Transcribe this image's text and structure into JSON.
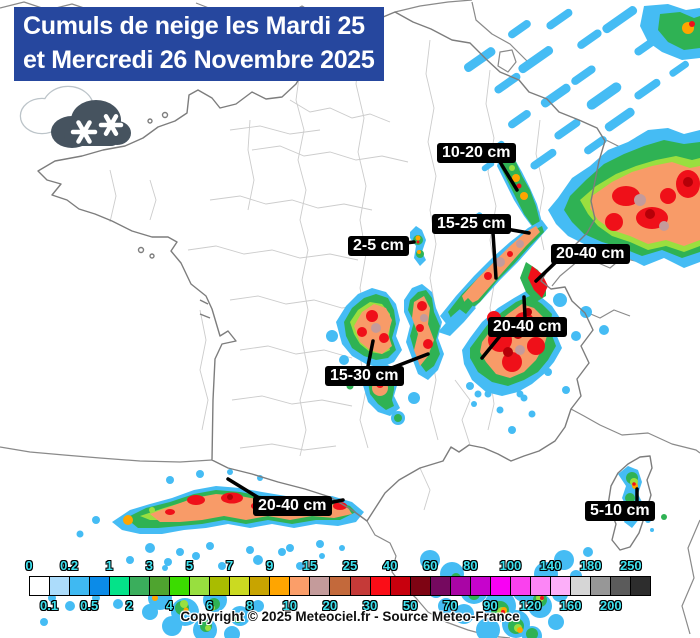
{
  "title": {
    "line1": "Cumuls de neige les Mardi 25",
    "line2": "et Mercredi 26 Novembre 2025"
  },
  "icons": {
    "snow_cloud": "snow-cloud"
  },
  "callouts": [
    {
      "label": "10-20 cm"
    },
    {
      "label": "15-25 cm"
    },
    {
      "label": "2-5 cm"
    },
    {
      "label": "20-40 cm"
    },
    {
      "label": "20-40 cm"
    },
    {
      "label": "15-30 cm"
    },
    {
      "label": "20-40 cm"
    },
    {
      "label": "5-10 cm"
    }
  ],
  "legend": {
    "cells": [
      {
        "label": "0",
        "row": "top",
        "color": "#FFFFFF"
      },
      {
        "label": "0.1",
        "row": "bottom",
        "color": "#ACDCFB"
      },
      {
        "label": "0.2",
        "row": "top",
        "color": "#3FB9F2"
      },
      {
        "label": "0.5",
        "row": "bottom",
        "color": "#0B8BE8"
      },
      {
        "label": "1",
        "row": "top",
        "color": "#04E389"
      },
      {
        "label": "2",
        "row": "bottom",
        "color": "#3AAE5C"
      },
      {
        "label": "3",
        "row": "top",
        "color": "#4FA42F"
      },
      {
        "label": "4",
        "row": "bottom",
        "color": "#3BDC00"
      },
      {
        "label": "5",
        "row": "top",
        "color": "#98DF3F"
      },
      {
        "label": "6",
        "row": "bottom",
        "color": "#A9BC00"
      },
      {
        "label": "7",
        "row": "top",
        "color": "#CBDA21"
      },
      {
        "label": "8",
        "row": "bottom",
        "color": "#C8A400"
      },
      {
        "label": "9",
        "row": "top",
        "color": "#FFA500"
      },
      {
        "label": "10",
        "row": "bottom",
        "color": "#FB9E69"
      },
      {
        "label": "15",
        "row": "top",
        "color": "#C49B9B"
      },
      {
        "label": "20",
        "row": "bottom",
        "color": "#C3693B"
      },
      {
        "label": "25",
        "row": "top",
        "color": "#C53A38"
      },
      {
        "label": "30",
        "row": "bottom",
        "color": "#FB0D17"
      },
      {
        "label": "40",
        "row": "top",
        "color": "#C8000D"
      },
      {
        "label": "50",
        "row": "bottom",
        "color": "#7E0413"
      },
      {
        "label": "60",
        "row": "top",
        "color": "#75095F"
      },
      {
        "label": "70",
        "row": "bottom",
        "color": "#A905A5"
      },
      {
        "label": "80",
        "row": "top",
        "color": "#C603CC"
      },
      {
        "label": "90",
        "row": "bottom",
        "color": "#F900F4"
      },
      {
        "label": "100",
        "row": "top",
        "color": "#FA41EE"
      },
      {
        "label": "120",
        "row": "bottom",
        "color": "#FC86F6"
      },
      {
        "label": "140",
        "row": "top",
        "color": "#FCAFF9"
      },
      {
        "label": "160",
        "row": "bottom",
        "color": "#D6D6D6"
      },
      {
        "label": "180",
        "row": "top",
        "color": "#979797"
      },
      {
        "label": "200",
        "row": "bottom",
        "color": "#5B5B5B"
      },
      {
        "label": "250",
        "row": "top",
        "color": "#2D2D2D"
      }
    ]
  },
  "copyright": "Copyright © 2025 Meteociel.fr - Source Meteo-France",
  "colors": {
    "banner_bg": "#26479E",
    "banner_text": "#FFFFFF",
    "callout_bg": "#000000",
    "callout_text": "#FFFFFF",
    "legend_tick_text": "#3FE2EF"
  }
}
